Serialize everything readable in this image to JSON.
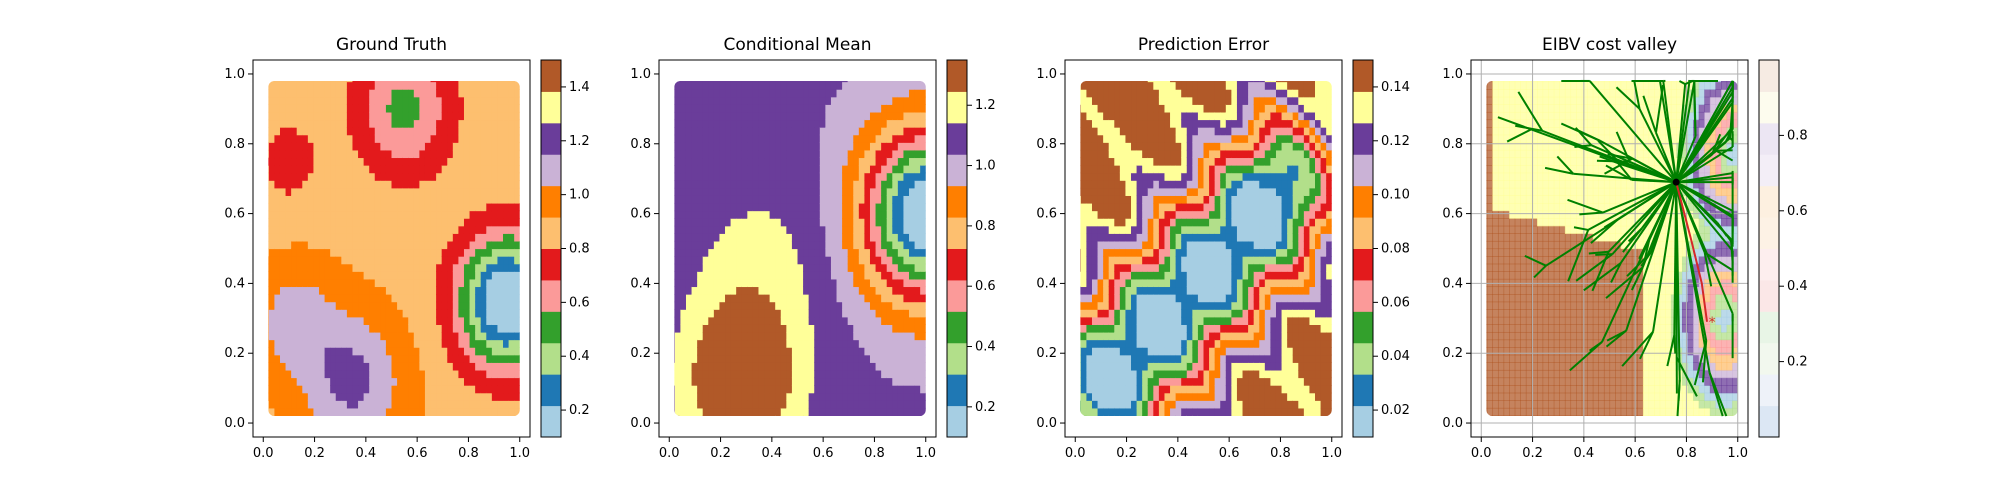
{
  "chart_data": [
    {
      "type": "heatmap",
      "title": "Ground Truth",
      "xlim": [
        0,
        1
      ],
      "ylim": [
        0,
        1
      ],
      "x_ticks": [
        "0.0",
        "0.2",
        "0.4",
        "0.6",
        "0.8",
        "1.0"
      ],
      "y_ticks": [
        "0.0",
        "0.2",
        "0.4",
        "0.6",
        "0.8",
        "1.0"
      ],
      "colorbar": {
        "ticks": [
          "0.2",
          "0.4",
          "0.6",
          "0.8",
          "1.0",
          "1.2",
          "1.4"
        ],
        "min": 0.1,
        "max": 1.5
      },
      "grid": false,
      "field": {
        "mean": 0.88,
        "blobs": [
          [
            0.95,
            0.35,
            0.13,
            -0.85
          ],
          [
            0.55,
            0.9,
            0.13,
            -0.35
          ],
          [
            0.35,
            0.12,
            0.14,
            0.3
          ],
          [
            0.12,
            0.3,
            0.12,
            0.2
          ],
          [
            0.1,
            0.75,
            0.1,
            -0.12
          ]
        ]
      }
    },
    {
      "type": "heatmap",
      "title": "Conditional Mean",
      "xlim": [
        0,
        1
      ],
      "ylim": [
        0,
        1
      ],
      "x_ticks": [
        "0.0",
        "0.2",
        "0.4",
        "0.6",
        "0.8",
        "1.0"
      ],
      "y_ticks": [
        "0.0",
        "0.2",
        "0.4",
        "0.6",
        "0.8",
        "1.0"
      ],
      "colorbar": {
        "ticks": [
          "0.2",
          "0.4",
          "0.6",
          "0.8",
          "1.0",
          "1.2"
        ],
        "min": 0.1,
        "max": 1.35
      },
      "grid": false,
      "field": {
        "mean": 1.05,
        "blobs": [
          [
            1.0,
            0.6,
            0.17,
            -1.0
          ],
          [
            0.28,
            0.12,
            0.16,
            0.35
          ],
          [
            0.35,
            0.45,
            0.2,
            0.12
          ]
        ]
      }
    },
    {
      "type": "heatmap",
      "title": "Prediction Error",
      "xlim": [
        0,
        1
      ],
      "ylim": [
        0,
        1
      ],
      "x_ticks": [
        "0.0",
        "0.2",
        "0.4",
        "0.6",
        "0.8",
        "1.0"
      ],
      "y_ticks": [
        "0.0",
        "0.2",
        "0.4",
        "0.6",
        "0.8",
        "1.0"
      ],
      "colorbar": {
        "ticks": [
          "0.02",
          "0.04",
          "0.06",
          "0.08",
          "0.10",
          "0.12",
          "0.14"
        ],
        "min": 0.01,
        "max": 0.15
      },
      "grid": false,
      "field": {
        "mean": 0.15,
        "ridge": {
          "from": [
            0.1,
            0.1
          ],
          "to": [
            0.78,
            0.65
          ],
          "width": 0.17,
          "depth": -0.14
        }
      }
    },
    {
      "type": "heatmap",
      "title": "EIBV cost valley",
      "xlim": [
        0,
        1
      ],
      "ylim": [
        0,
        1
      ],
      "x_ticks": [
        "0.0",
        "0.2",
        "0.4",
        "0.6",
        "0.8",
        "1.0"
      ],
      "y_ticks": [
        "0.0",
        "0.2",
        "0.4",
        "0.6",
        "0.8",
        "1.0"
      ],
      "colorbar": {
        "ticks": [
          "0.2",
          "0.4",
          "0.6",
          "0.8"
        ],
        "min": 0.0,
        "max": 1.0
      },
      "grid": true,
      "tree_root": [
        0.76,
        0.69
      ],
      "current_point": [
        0.9,
        0.29
      ],
      "path": [
        [
          0.76,
          0.69
        ],
        [
          0.82,
          0.52
        ],
        [
          0.86,
          0.4
        ],
        [
          0.88,
          0.29
        ]
      ]
    }
  ]
}
